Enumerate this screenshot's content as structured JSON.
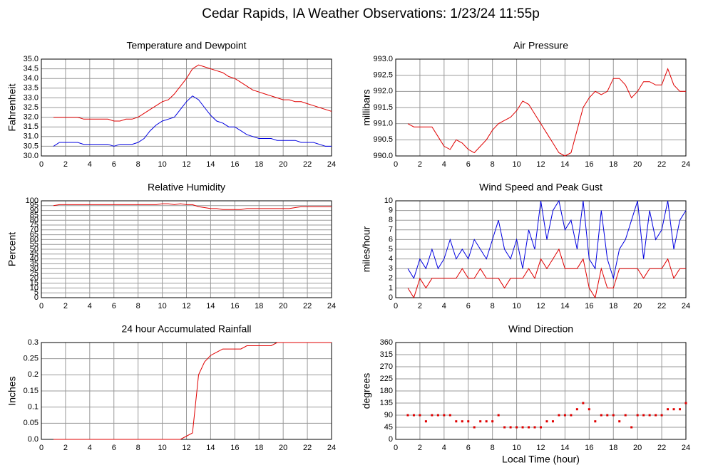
{
  "title": "Cedar Rapids, IA Weather Observations: 1/23/24 11:55p",
  "chart_data": [
    {
      "type": "line",
      "title": "Temperature and Dewpoint",
      "ylabel": "Fahrenheit",
      "x": [
        1,
        1.5,
        2,
        2.5,
        3,
        3.5,
        4,
        4.5,
        5,
        5.5,
        6,
        6.5,
        7,
        7.5,
        8,
        8.5,
        9,
        9.5,
        10,
        10.5,
        11,
        11.5,
        12,
        12.5,
        13,
        13.5,
        14,
        14.5,
        15,
        15.5,
        16,
        16.5,
        17,
        17.5,
        18,
        18.5,
        19,
        19.5,
        20,
        20.5,
        21,
        21.5,
        22,
        22.5,
        23,
        23.5,
        24
      ],
      "series": [
        {
          "color": "#e00000",
          "values": [
            32.0,
            32.0,
            32.0,
            32.0,
            32.0,
            31.9,
            31.9,
            31.9,
            31.9,
            31.9,
            31.8,
            31.8,
            31.9,
            31.9,
            32.0,
            32.2,
            32.4,
            32.6,
            32.8,
            32.9,
            33.2,
            33.6,
            34.0,
            34.5,
            34.7,
            34.6,
            34.5,
            34.4,
            34.3,
            34.1,
            34.0,
            33.8,
            33.6,
            33.4,
            33.3,
            33.2,
            33.1,
            33.0,
            32.9,
            32.9,
            32.8,
            32.8,
            32.7,
            32.6,
            32.5,
            32.4,
            32.3
          ]
        },
        {
          "color": "#0000e0",
          "values": [
            30.5,
            30.7,
            30.7,
            30.7,
            30.7,
            30.6,
            30.6,
            30.6,
            30.6,
            30.6,
            30.5,
            30.6,
            30.6,
            30.6,
            30.7,
            30.9,
            31.3,
            31.6,
            31.8,
            31.9,
            32.0,
            32.4,
            32.8,
            33.1,
            32.9,
            32.5,
            32.1,
            31.8,
            31.7,
            31.5,
            31.5,
            31.3,
            31.1,
            31.0,
            30.9,
            30.9,
            30.9,
            30.8,
            30.8,
            30.8,
            30.8,
            30.7,
            30.7,
            30.7,
            30.6,
            30.5,
            30.5
          ]
        }
      ],
      "xlim": [
        0,
        24
      ],
      "xticks": [
        0,
        2,
        4,
        6,
        8,
        10,
        12,
        14,
        16,
        18,
        20,
        22,
        24
      ],
      "ylim": [
        30,
        35
      ],
      "yticks": [
        {
          "value": 30,
          "label": "30.0"
        },
        30.5,
        {
          "value": 31,
          "label": "31.0"
        },
        31.5,
        {
          "value": 32,
          "label": "32.0"
        },
        32.5,
        {
          "value": 33,
          "label": "33.0"
        },
        33.5,
        {
          "value": 34,
          "label": "34.0"
        },
        34.5,
        {
          "value": 35,
          "label": "35.0"
        }
      ],
      "grid": true
    },
    {
      "type": "line",
      "title": "Air Pressure",
      "ylabel": "millibars",
      "x": [
        1,
        1.5,
        2,
        2.5,
        3,
        3.5,
        4,
        4.5,
        5,
        5.5,
        6,
        6.5,
        7,
        7.5,
        8,
        8.5,
        9,
        9.5,
        10,
        10.5,
        11,
        11.5,
        12,
        12.5,
        13,
        13.5,
        14,
        14.5,
        15,
        15.5,
        16,
        16.5,
        17,
        17.5,
        18,
        18.5,
        19,
        19.5,
        20,
        20.5,
        21,
        21.5,
        22,
        22.5,
        23,
        23.5,
        24
      ],
      "series": [
        {
          "color": "#e00000",
          "values": [
            991.0,
            990.9,
            990.9,
            990.9,
            990.9,
            990.6,
            990.3,
            990.2,
            990.5,
            990.4,
            990.2,
            990.1,
            990.3,
            990.5,
            990.8,
            991.0,
            991.1,
            991.2,
            991.4,
            991.7,
            991.6,
            991.3,
            991.0,
            990.7,
            990.4,
            990.1,
            990.0,
            990.1,
            990.8,
            991.5,
            991.8,
            992.0,
            991.9,
            992.0,
            992.4,
            992.4,
            992.2,
            991.8,
            992.0,
            992.3,
            992.3,
            992.2,
            992.2,
            992.7,
            992.2,
            992.0,
            992.0
          ]
        }
      ],
      "xlim": [
        0,
        24
      ],
      "xticks": [
        0,
        2,
        4,
        6,
        8,
        10,
        12,
        14,
        16,
        18,
        20,
        22,
        24
      ],
      "ylim": [
        990,
        993
      ],
      "yticks": [
        {
          "value": 990,
          "label": "990.0"
        },
        990.5,
        {
          "value": 991,
          "label": "991.0"
        },
        991.5,
        {
          "value": 992,
          "label": "992.0"
        },
        992.5,
        {
          "value": 993,
          "label": "993.0"
        }
      ],
      "grid": true
    },
    {
      "type": "line",
      "title": "Relative Humidity",
      "ylabel": "Percent",
      "x": [
        1,
        1.5,
        2,
        2.5,
        3,
        3.5,
        4,
        4.5,
        5,
        5.5,
        6,
        6.5,
        7,
        7.5,
        8,
        8.5,
        9,
        9.5,
        10,
        10.5,
        11,
        11.5,
        12,
        12.5,
        13,
        13.5,
        14,
        14.5,
        15,
        15.5,
        16,
        16.5,
        17,
        17.5,
        18,
        18.5,
        19,
        19.5,
        20,
        20.5,
        21,
        21.5,
        22,
        22.5,
        23,
        23.5,
        24
      ],
      "series": [
        {
          "color": "#e00000",
          "values": [
            95,
            96,
            96,
            96,
            96,
            96,
            96,
            96,
            96,
            96,
            96,
            96,
            96,
            96,
            96,
            96,
            96,
            96,
            97,
            97,
            96,
            97,
            96,
            96,
            94,
            93,
            92,
            92,
            91,
            91,
            91,
            91,
            92,
            92,
            92,
            92,
            92,
            92,
            92,
            92,
            93,
            94,
            94,
            94,
            94,
            94,
            94
          ]
        }
      ],
      "xlim": [
        0,
        24
      ],
      "xticks": [
        0,
        2,
        4,
        6,
        8,
        10,
        12,
        14,
        16,
        18,
        20,
        22,
        24
      ],
      "ylim": [
        0,
        100
      ],
      "yticks": [
        0,
        5,
        10,
        15,
        20,
        25,
        30,
        35,
        40,
        45,
        50,
        55,
        60,
        65,
        70,
        75,
        80,
        85,
        90,
        95,
        100
      ],
      "grid": true
    },
    {
      "type": "line",
      "title": "Wind Speed and Peak Gust",
      "ylabel": "miles/hour",
      "x": [
        1,
        1.5,
        2,
        2.5,
        3,
        3.5,
        4,
        4.5,
        5,
        5.5,
        6,
        6.5,
        7,
        7.5,
        8,
        8.5,
        9,
        9.5,
        10,
        10.5,
        11,
        11.5,
        12,
        12.5,
        13,
        13.5,
        14,
        14.5,
        15,
        15.5,
        16,
        16.5,
        17,
        17.5,
        18,
        18.5,
        19,
        19.5,
        20,
        20.5,
        21,
        21.5,
        22,
        22.5,
        23,
        23.5,
        24
      ],
      "series": [
        {
          "color": "#0000e0",
          "values": [
            3,
            2,
            4,
            3,
            5,
            3,
            4,
            6,
            4,
            5,
            4,
            6,
            5,
            4,
            6,
            8,
            5,
            4,
            6,
            3,
            7,
            5,
            10,
            6,
            9,
            10,
            7,
            8,
            5,
            10,
            4,
            3,
            9,
            4,
            2,
            5,
            6,
            8,
            10,
            4,
            9,
            6,
            7,
            10,
            5,
            8,
            9
          ]
        },
        {
          "color": "#e00000",
          "values": [
            1,
            0,
            2,
            1,
            2,
            2,
            2,
            2,
            2,
            3,
            2,
            2,
            3,
            2,
            2,
            2,
            1,
            2,
            2,
            2,
            3,
            2,
            4,
            3,
            4,
            5,
            3,
            3,
            3,
            4,
            1,
            0,
            3,
            1,
            1,
            3,
            3,
            3,
            3,
            2,
            3,
            3,
            3,
            4,
            2,
            3,
            3
          ]
        }
      ],
      "xlim": [
        0,
        24
      ],
      "xticks": [
        0,
        2,
        4,
        6,
        8,
        10,
        12,
        14,
        16,
        18,
        20,
        22,
        24
      ],
      "ylim": [
        0,
        10
      ],
      "yticks": [
        0,
        1,
        2,
        3,
        4,
        5,
        6,
        7,
        8,
        9,
        10
      ],
      "grid": true
    },
    {
      "type": "line",
      "title": "24 hour Accumulated Rainfall",
      "ylabel": "Inches",
      "x": [
        1,
        1.5,
        2,
        2.5,
        3,
        3.5,
        4,
        4.5,
        5,
        5.5,
        6,
        6.5,
        7,
        7.5,
        8,
        8.5,
        9,
        9.5,
        10,
        10.5,
        11,
        11.5,
        12,
        12.5,
        13,
        13.5,
        14,
        14.5,
        15,
        15.5,
        16,
        16.5,
        17,
        17.5,
        18,
        18.5,
        19,
        19.5,
        20,
        20.5,
        21,
        21.5,
        22,
        22.5,
        23,
        23.5,
        24
      ],
      "series": [
        {
          "color": "#e00000",
          "values": [
            0,
            0,
            0,
            0,
            0,
            0,
            0,
            0,
            0,
            0,
            0,
            0,
            0,
            0,
            0,
            0,
            0,
            0,
            0,
            0,
            0,
            0,
            0.01,
            0.02,
            0.2,
            0.24,
            0.26,
            0.27,
            0.28,
            0.28,
            0.28,
            0.28,
            0.29,
            0.29,
            0.29,
            0.29,
            0.29,
            0.3,
            0.3,
            0.3,
            0.3,
            0.3,
            0.3,
            0.3,
            0.3,
            0.3,
            0.3
          ]
        }
      ],
      "xlim": [
        0,
        24
      ],
      "xticks": [
        0,
        2,
        4,
        6,
        8,
        10,
        12,
        14,
        16,
        18,
        20,
        22,
        24
      ],
      "ylim": [
        0,
        0.3
      ],
      "yticks": [
        {
          "value": 0,
          "label": "0.0"
        },
        0.05,
        0.1,
        0.15,
        0.2,
        0.25,
        0.3
      ],
      "grid": true
    },
    {
      "type": "scatter",
      "title": "Wind Direction",
      "ylabel": "degrees",
      "xlabel": "Local Time (hour)",
      "color": "#e00000",
      "x": [
        1,
        1.5,
        2,
        2.5,
        3,
        3.5,
        4,
        4.5,
        5,
        5.5,
        6,
        6.5,
        7,
        7.5,
        8,
        8.5,
        9,
        9.5,
        10,
        10.5,
        11,
        11.5,
        12,
        12.5,
        13,
        13.5,
        14,
        14.5,
        15,
        15.5,
        16,
        16.5,
        17,
        17.5,
        18,
        18.5,
        19,
        19.5,
        20,
        20.5,
        21,
        21.5,
        22,
        22.5,
        23,
        23.5,
        24
      ],
      "values": [
        90,
        90,
        90,
        67,
        90,
        90,
        90,
        90,
        67,
        67,
        67,
        45,
        67,
        67,
        67,
        90,
        45,
        45,
        45,
        45,
        45,
        45,
        45,
        67,
        67,
        90,
        90,
        90,
        112,
        135,
        112,
        67,
        90,
        90,
        90,
        67,
        90,
        45,
        90,
        90,
        90,
        90,
        90,
        112,
        112,
        112,
        135
      ],
      "xlim": [
        0,
        24
      ],
      "xticks": [
        0,
        2,
        4,
        6,
        8,
        10,
        12,
        14,
        16,
        18,
        20,
        22,
        24
      ],
      "ylim": [
        0,
        360
      ],
      "yticks": [
        0,
        45,
        90,
        135,
        180,
        225,
        270,
        315,
        360
      ],
      "grid": true
    }
  ]
}
